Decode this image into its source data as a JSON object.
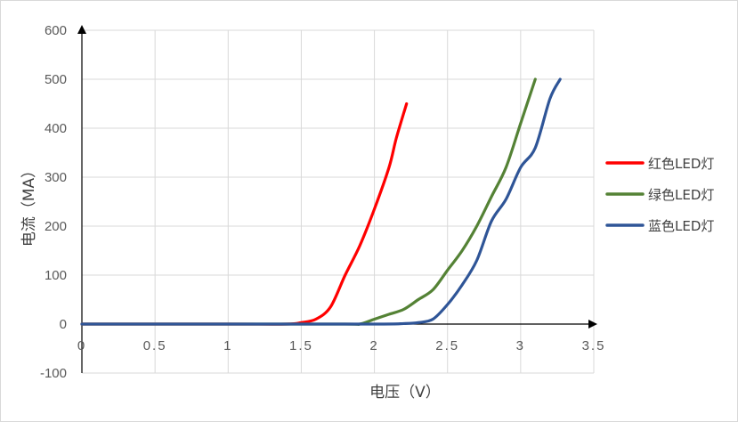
{
  "chart_data": {
    "type": "line",
    "title": "",
    "xlabel": "电压（V）",
    "ylabel": "电流（MA）",
    "xlim": [
      0,
      3.5
    ],
    "ylim": [
      -100,
      600
    ],
    "x_ticks": [
      "0",
      "0.5",
      "1",
      "1.5",
      "2",
      "2.5",
      "3",
      "3.5"
    ],
    "y_ticks": [
      "600",
      "500",
      "400",
      "300",
      "200",
      "100",
      "0",
      "-100"
    ],
    "grid": true,
    "legend_position": "right",
    "series": [
      {
        "name": "红色LED灯",
        "color": "#ff0000",
        "points": [
          [
            0,
            0
          ],
          [
            1.0,
            0
          ],
          [
            1.4,
            0
          ],
          [
            1.5,
            3
          ],
          [
            1.6,
            10
          ],
          [
            1.7,
            35
          ],
          [
            1.8,
            100
          ],
          [
            1.9,
            160
          ],
          [
            2.0,
            235
          ],
          [
            2.1,
            320
          ],
          [
            2.15,
            380
          ],
          [
            2.22,
            450
          ]
        ]
      },
      {
        "name": "绿色LED灯",
        "color": "#548235",
        "points": [
          [
            0,
            0
          ],
          [
            1.0,
            0
          ],
          [
            1.8,
            0
          ],
          [
            1.9,
            0
          ],
          [
            2.0,
            10
          ],
          [
            2.1,
            20
          ],
          [
            2.2,
            30
          ],
          [
            2.3,
            50
          ],
          [
            2.4,
            70
          ],
          [
            2.5,
            110
          ],
          [
            2.6,
            150
          ],
          [
            2.7,
            200
          ],
          [
            2.8,
            260
          ],
          [
            2.9,
            320
          ],
          [
            3.0,
            410
          ],
          [
            3.1,
            500
          ]
        ]
      },
      {
        "name": "蓝色LED灯",
        "color": "#2f5597",
        "points": [
          [
            0,
            0
          ],
          [
            1.0,
            0
          ],
          [
            2.0,
            0
          ],
          [
            2.2,
            1
          ],
          [
            2.3,
            3
          ],
          [
            2.4,
            10
          ],
          [
            2.5,
            40
          ],
          [
            2.6,
            80
          ],
          [
            2.7,
            130
          ],
          [
            2.8,
            210
          ],
          [
            2.9,
            255
          ],
          [
            3.0,
            320
          ],
          [
            3.1,
            360
          ],
          [
            3.2,
            460
          ],
          [
            3.27,
            500
          ]
        ]
      }
    ]
  }
}
